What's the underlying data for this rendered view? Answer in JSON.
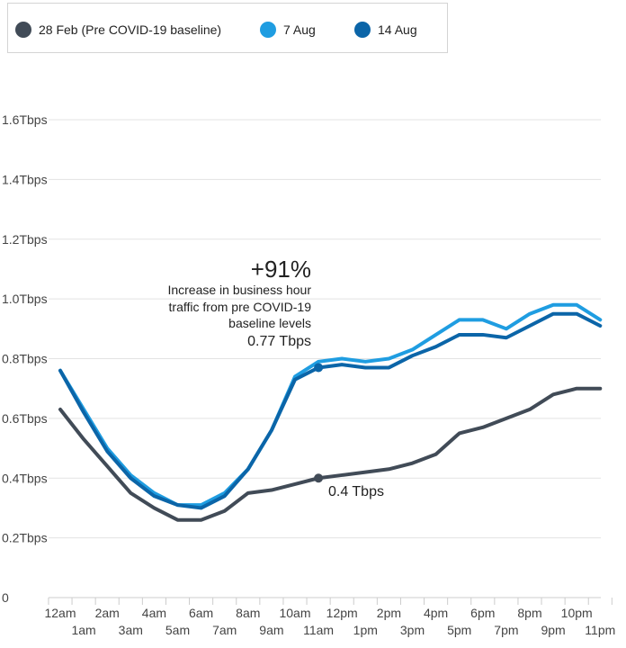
{
  "chart_data": {
    "type": "line",
    "title": "",
    "xlabel": "",
    "ylabel": "",
    "grid": true,
    "legend_position": "top-left",
    "x_ticks_row1": [
      "12am",
      "2am",
      "4am",
      "6am",
      "8am",
      "10am",
      "12pm",
      "2pm",
      "4pm",
      "6pm",
      "8pm",
      "10pm"
    ],
    "x_ticks_row2": [
      "1am",
      "3am",
      "5am",
      "7am",
      "9am",
      "11am",
      "1pm",
      "3pm",
      "5pm",
      "7pm",
      "9pm",
      "11pm"
    ],
    "x_hours": [
      0,
      1,
      2,
      3,
      4,
      5,
      6,
      7,
      8,
      9,
      10,
      11,
      12,
      13,
      14,
      15,
      16,
      17,
      18,
      19,
      20,
      21,
      22,
      23
    ],
    "y_ticks": [
      "0",
      "0.2Tbps",
      "0.4Tbps",
      "0.6Tbps",
      "0.8Tbps",
      "1.0Tbps",
      "1.2Tbps",
      "1.4Tbps",
      "1.6Tbps"
    ],
    "y_tick_values": [
      0,
      0.2,
      0.4,
      0.6,
      0.8,
      1.0,
      1.2,
      1.4,
      1.6
    ],
    "ylim": [
      0,
      1.6
    ],
    "y_unit": "Tbps",
    "series": [
      {
        "name": "28 Feb (Pre COVID-19 baseline)",
        "color": "#414b57",
        "values": [
          0.63,
          0.53,
          0.44,
          0.35,
          0.3,
          0.26,
          0.26,
          0.29,
          0.35,
          0.36,
          0.38,
          0.4,
          0.41,
          0.42,
          0.43,
          0.45,
          0.48,
          0.55,
          0.57,
          0.6,
          0.63,
          0.68,
          0.7,
          0.7
        ]
      },
      {
        "name": "7 Aug",
        "color": "#1f9de1",
        "values": [
          0.76,
          0.63,
          0.5,
          0.41,
          0.35,
          0.31,
          0.31,
          0.35,
          0.43,
          0.56,
          0.74,
          0.79,
          0.8,
          0.79,
          0.8,
          0.83,
          0.88,
          0.93,
          0.93,
          0.9,
          0.95,
          0.98,
          0.98,
          0.93
        ]
      },
      {
        "name": "14 Aug",
        "color": "#0b65a8",
        "values": [
          0.76,
          0.62,
          0.49,
          0.4,
          0.34,
          0.31,
          0.3,
          0.34,
          0.43,
          0.56,
          0.73,
          0.77,
          0.78,
          0.77,
          0.77,
          0.81,
          0.84,
          0.88,
          0.88,
          0.87,
          0.91,
          0.95,
          0.95,
          0.91
        ]
      }
    ],
    "annotations": {
      "big": "+91%",
      "lines": [
        "Increase in business hour",
        "traffic from pre COVID-19",
        "baseline levels"
      ],
      "aug_value": "0.77 Tbps",
      "feb_value": "0.4 Tbps",
      "marker_hour": 11
    }
  }
}
